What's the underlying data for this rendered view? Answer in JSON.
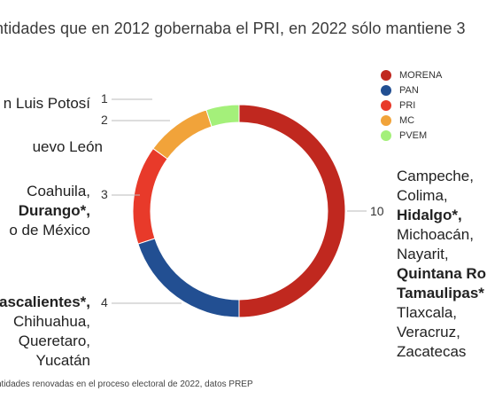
{
  "title": "ntidades que en 2012 gobernaba el PRI, en 2022 sólo mantiene 3",
  "footnote": "ntidades renovadas en el proceso electoral de 2022, datos PREP",
  "chart_data": {
    "type": "pie",
    "variant": "donut",
    "title": "ntidades que en 2012 gobernaba el PRI, en 2022 sólo mantiene 3",
    "categories": [
      "MORENA",
      "PAN",
      "PRI",
      "MC",
      "PVEM"
    ],
    "values": [
      10,
      4,
      3,
      2,
      1
    ],
    "colors": [
      "#c0281f",
      "#224f92",
      "#e83a2a",
      "#f1a33a",
      "#a4f07a"
    ],
    "legend": "top-right",
    "annotations": [
      {
        "series": "MORENA",
        "value": "10",
        "lines": [
          {
            "text": "Campeche,",
            "bold": false
          },
          {
            "text": "Colima,",
            "bold": false
          },
          {
            "text": "Hidalgo*,",
            "bold": true
          },
          {
            "text": "Michoacán,",
            "bold": false
          },
          {
            "text": "Nayarit,",
            "bold": false
          },
          {
            "text": "Quintana Ro",
            "bold": true
          },
          {
            "text": "Tamaulipas*",
            "bold": true
          },
          {
            "text": "Tlaxcala,",
            "bold": false
          },
          {
            "text": "Veracruz,",
            "bold": false
          },
          {
            "text": "Zacatecas",
            "bold": false
          }
        ]
      },
      {
        "series": "PAN",
        "value": "4",
        "lines": [
          {
            "text": "ascalientes*,",
            "bold": true
          },
          {
            "text": "Chihuahua,",
            "bold": false
          },
          {
            "text": "Queretaro,",
            "bold": false
          },
          {
            "text": "Yucatán",
            "bold": false
          }
        ]
      },
      {
        "series": "PRI",
        "value": "3",
        "lines": [
          {
            "text": "Coahuila,",
            "bold": false
          },
          {
            "text": "Durango*,",
            "bold": true
          },
          {
            "text": "o de México",
            "bold": false
          }
        ]
      },
      {
        "series": "MC",
        "value": "2",
        "lines": [
          {
            "text": "uevo León",
            "bold": false
          }
        ]
      },
      {
        "series": "PVEM",
        "value": "1",
        "lines": [
          {
            "text": "n Luis Potosí",
            "bold": false
          }
        ]
      }
    ]
  }
}
